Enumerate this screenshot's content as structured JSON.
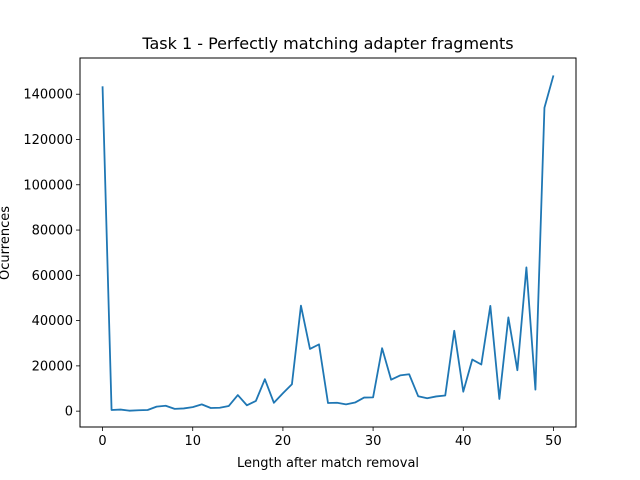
{
  "chart_data": {
    "type": "line",
    "title": "Task 1 - Perfectly matching adapter fragments",
    "xlabel": "Length after match removal",
    "ylabel": "Ocurrences",
    "xlim": [
      -2.5,
      52.5
    ],
    "ylim": [
      -7000,
      156000
    ],
    "xticks": [
      0,
      10,
      20,
      30,
      40,
      50
    ],
    "yticks": [
      0,
      20000,
      40000,
      60000,
      80000,
      100000,
      120000,
      140000
    ],
    "grid": false,
    "series": [
      {
        "color": "#1f77b4",
        "x": [
          0,
          1,
          2,
          3,
          4,
          5,
          6,
          7,
          8,
          9,
          10,
          11,
          12,
          13,
          14,
          15,
          16,
          17,
          18,
          19,
          20,
          21,
          22,
          23,
          24,
          25,
          26,
          27,
          28,
          29,
          30,
          31,
          32,
          33,
          34,
          35,
          36,
          37,
          38,
          39,
          40,
          41,
          42,
          43,
          44,
          45,
          46,
          47,
          48,
          49,
          50
        ],
        "y": [
          143500,
          500,
          700,
          200,
          400,
          500,
          2000,
          2400,
          1000,
          1200,
          1800,
          3000,
          1400,
          1500,
          2300,
          7100,
          2600,
          4500,
          14100,
          3700,
          7900,
          11900,
          46600,
          27500,
          29500,
          3600,
          3700,
          3000,
          3800,
          6000,
          6100,
          27800,
          13900,
          15800,
          16300,
          6600,
          5700,
          6500,
          6900,
          35500,
          8600,
          22800,
          20600,
          46500,
          5400,
          41400,
          18100,
          63500,
          9500,
          134000,
          148300
        ]
      }
    ]
  }
}
